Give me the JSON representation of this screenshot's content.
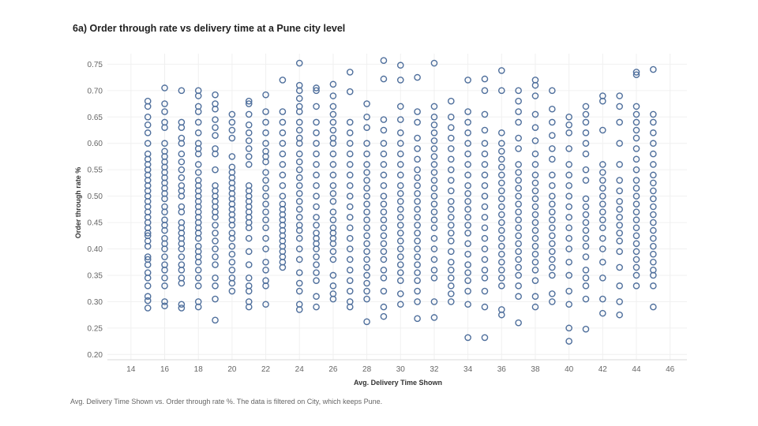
{
  "chart_data": {
    "type": "scatter",
    "title": "6a) Order through rate vs delivery time at a Pune city level",
    "xlabel": "Avg. Delivery Time Shown",
    "ylabel": "Order through rate %",
    "xlim": [
      12.6,
      47
    ],
    "ylim": [
      0.19,
      0.77
    ],
    "x_ticks": [
      14,
      16,
      18,
      20,
      22,
      24,
      26,
      28,
      30,
      32,
      34,
      36,
      38,
      40,
      42,
      44,
      46
    ],
    "y_ticks": [
      0.2,
      0.25,
      0.3,
      0.35,
      0.4,
      0.45,
      0.5,
      0.55,
      0.6,
      0.65,
      0.7,
      0.75
    ],
    "grid": true,
    "marker": "hollow-circle",
    "marker_color": "#4f6f9c",
    "points_by_x": [
      {
        "x": 15,
        "y": [
          0.288,
          0.302,
          0.31,
          0.33,
          0.345,
          0.355,
          0.37,
          0.38,
          0.385,
          0.405,
          0.415,
          0.425,
          0.43,
          0.44,
          0.45,
          0.46,
          0.47,
          0.48,
          0.49,
          0.5,
          0.51,
          0.52,
          0.53,
          0.54,
          0.55,
          0.56,
          0.57,
          0.58,
          0.6,
          0.62,
          0.635,
          0.65,
          0.67,
          0.68
        ]
      },
      {
        "x": 16,
        "y": [
          0.292,
          0.3,
          0.33,
          0.345,
          0.36,
          0.37,
          0.385,
          0.4,
          0.41,
          0.42,
          0.435,
          0.445,
          0.455,
          0.47,
          0.48,
          0.495,
          0.505,
          0.515,
          0.525,
          0.535,
          0.545,
          0.555,
          0.565,
          0.575,
          0.585,
          0.6,
          0.63,
          0.64,
          0.66,
          0.675,
          0.705
        ]
      },
      {
        "x": 17,
        "y": [
          0.288,
          0.295,
          0.335,
          0.345,
          0.36,
          0.37,
          0.385,
          0.4,
          0.41,
          0.42,
          0.43,
          0.44,
          0.45,
          0.47,
          0.48,
          0.5,
          0.51,
          0.52,
          0.535,
          0.55,
          0.565,
          0.58,
          0.6,
          0.61,
          0.63,
          0.64,
          0.7
        ]
      },
      {
        "x": 18,
        "y": [
          0.29,
          0.3,
          0.33,
          0.345,
          0.36,
          0.375,
          0.385,
          0.395,
          0.405,
          0.42,
          0.43,
          0.44,
          0.45,
          0.46,
          0.47,
          0.48,
          0.49,
          0.5,
          0.51,
          0.52,
          0.53,
          0.545,
          0.56,
          0.58,
          0.59,
          0.6,
          0.62,
          0.64,
          0.66,
          0.67,
          0.69,
          0.7
        ]
      },
      {
        "x": 19,
        "y": [
          0.265,
          0.305,
          0.33,
          0.345,
          0.37,
          0.385,
          0.4,
          0.415,
          0.43,
          0.445,
          0.46,
          0.47,
          0.48,
          0.49,
          0.5,
          0.51,
          0.52,
          0.55,
          0.58,
          0.59,
          0.615,
          0.63,
          0.645,
          0.665,
          0.675,
          0.692
        ]
      },
      {
        "x": 20,
        "y": [
          0.32,
          0.335,
          0.345,
          0.36,
          0.375,
          0.39,
          0.405,
          0.42,
          0.43,
          0.445,
          0.455,
          0.465,
          0.475,
          0.485,
          0.495,
          0.505,
          0.515,
          0.525,
          0.535,
          0.545,
          0.555,
          0.575,
          0.61,
          0.625,
          0.64,
          0.655
        ]
      },
      {
        "x": 21,
        "y": [
          0.29,
          0.3,
          0.32,
          0.33,
          0.345,
          0.37,
          0.395,
          0.42,
          0.44,
          0.45,
          0.46,
          0.47,
          0.48,
          0.49,
          0.5,
          0.51,
          0.52,
          0.56,
          0.575,
          0.59,
          0.605,
          0.62,
          0.635,
          0.655,
          0.675,
          0.68
        ]
      },
      {
        "x": 22,
        "y": [
          0.295,
          0.33,
          0.34,
          0.36,
          0.375,
          0.4,
          0.42,
          0.44,
          0.455,
          0.47,
          0.485,
          0.5,
          0.515,
          0.53,
          0.545,
          0.565,
          0.575,
          0.585,
          0.6,
          0.62,
          0.64,
          0.66,
          0.692
        ]
      },
      {
        "x": 23,
        "y": [
          0.365,
          0.375,
          0.385,
          0.395,
          0.405,
          0.415,
          0.425,
          0.435,
          0.445,
          0.455,
          0.465,
          0.475,
          0.485,
          0.5,
          0.52,
          0.54,
          0.56,
          0.58,
          0.6,
          0.62,
          0.64,
          0.66,
          0.72
        ]
      },
      {
        "x": 24,
        "y": [
          0.285,
          0.295,
          0.32,
          0.335,
          0.355,
          0.38,
          0.4,
          0.42,
          0.435,
          0.445,
          0.46,
          0.475,
          0.49,
          0.505,
          0.52,
          0.535,
          0.55,
          0.565,
          0.58,
          0.6,
          0.61,
          0.625,
          0.64,
          0.66,
          0.67,
          0.685,
          0.7,
          0.71,
          0.752
        ]
      },
      {
        "x": 25,
        "y": [
          0.29,
          0.31,
          0.34,
          0.355,
          0.37,
          0.385,
          0.4,
          0.41,
          0.42,
          0.43,
          0.445,
          0.46,
          0.48,
          0.5,
          0.52,
          0.54,
          0.56,
          0.58,
          0.6,
          0.62,
          0.64,
          0.67,
          0.7,
          0.705
        ]
      },
      {
        "x": 26,
        "y": [
          0.305,
          0.315,
          0.33,
          0.35,
          0.38,
          0.395,
          0.41,
          0.42,
          0.43,
          0.44,
          0.455,
          0.47,
          0.49,
          0.505,
          0.52,
          0.54,
          0.56,
          0.58,
          0.6,
          0.61,
          0.625,
          0.64,
          0.655,
          0.67,
          0.69,
          0.712
        ]
      },
      {
        "x": 27,
        "y": [
          0.29,
          0.3,
          0.32,
          0.34,
          0.36,
          0.38,
          0.4,
          0.42,
          0.44,
          0.46,
          0.48,
          0.5,
          0.52,
          0.54,
          0.56,
          0.58,
          0.6,
          0.62,
          0.64,
          0.698,
          0.735
        ]
      },
      {
        "x": 28,
        "y": [
          0.262,
          0.305,
          0.32,
          0.335,
          0.35,
          0.365,
          0.38,
          0.395,
          0.41,
          0.425,
          0.44,
          0.455,
          0.47,
          0.485,
          0.5,
          0.515,
          0.53,
          0.545,
          0.56,
          0.58,
          0.6,
          0.63,
          0.65,
          0.675
        ]
      },
      {
        "x": 29,
        "y": [
          0.272,
          0.29,
          0.32,
          0.345,
          0.36,
          0.38,
          0.395,
          0.41,
          0.425,
          0.44,
          0.455,
          0.47,
          0.485,
          0.5,
          0.52,
          0.54,
          0.56,
          0.58,
          0.6,
          0.625,
          0.645,
          0.722,
          0.757
        ]
      },
      {
        "x": 30,
        "y": [
          0.295,
          0.315,
          0.34,
          0.355,
          0.37,
          0.385,
          0.4,
          0.415,
          0.43,
          0.445,
          0.46,
          0.475,
          0.49,
          0.505,
          0.52,
          0.54,
          0.56,
          0.58,
          0.6,
          0.62,
          0.645,
          0.67,
          0.72,
          0.748
        ]
      },
      {
        "x": 31,
        "y": [
          0.268,
          0.3,
          0.32,
          0.34,
          0.355,
          0.37,
          0.385,
          0.4,
          0.415,
          0.43,
          0.445,
          0.46,
          0.475,
          0.49,
          0.505,
          0.52,
          0.535,
          0.55,
          0.57,
          0.59,
          0.61,
          0.64,
          0.66,
          0.725
        ]
      },
      {
        "x": 32,
        "y": [
          0.27,
          0.3,
          0.345,
          0.36,
          0.38,
          0.4,
          0.42,
          0.44,
          0.455,
          0.47,
          0.485,
          0.5,
          0.515,
          0.53,
          0.545,
          0.56,
          0.575,
          0.59,
          0.605,
          0.62,
          0.635,
          0.65,
          0.67,
          0.752
        ]
      },
      {
        "x": 33,
        "y": [
          0.3,
          0.315,
          0.33,
          0.345,
          0.36,
          0.375,
          0.395,
          0.415,
          0.43,
          0.445,
          0.46,
          0.475,
          0.49,
          0.51,
          0.53,
          0.55,
          0.57,
          0.59,
          0.61,
          0.63,
          0.65,
          0.68
        ]
      },
      {
        "x": 34,
        "y": [
          0.232,
          0.295,
          0.32,
          0.34,
          0.355,
          0.37,
          0.39,
          0.41,
          0.43,
          0.445,
          0.46,
          0.475,
          0.49,
          0.505,
          0.52,
          0.54,
          0.56,
          0.58,
          0.6,
          0.62,
          0.64,
          0.66,
          0.72
        ]
      },
      {
        "x": 35,
        "y": [
          0.232,
          0.29,
          0.32,
          0.345,
          0.36,
          0.38,
          0.4,
          0.42,
          0.44,
          0.46,
          0.48,
          0.5,
          0.52,
          0.54,
          0.56,
          0.58,
          0.6,
          0.625,
          0.655,
          0.7,
          0.722
        ]
      },
      {
        "x": 36,
        "y": [
          0.275,
          0.285,
          0.33,
          0.345,
          0.36,
          0.375,
          0.39,
          0.405,
          0.42,
          0.435,
          0.45,
          0.465,
          0.48,
          0.495,
          0.51,
          0.525,
          0.54,
          0.555,
          0.57,
          0.585,
          0.6,
          0.62,
          0.7,
          0.738
        ]
      },
      {
        "x": 37,
        "y": [
          0.26,
          0.31,
          0.33,
          0.35,
          0.365,
          0.38,
          0.395,
          0.41,
          0.425,
          0.44,
          0.455,
          0.47,
          0.485,
          0.5,
          0.515,
          0.53,
          0.545,
          0.56,
          0.59,
          0.61,
          0.64,
          0.66,
          0.68,
          0.7
        ]
      },
      {
        "x": 38,
        "y": [
          0.29,
          0.31,
          0.34,
          0.36,
          0.375,
          0.39,
          0.405,
          0.42,
          0.435,
          0.45,
          0.465,
          0.48,
          0.495,
          0.51,
          0.525,
          0.54,
          0.56,
          0.58,
          0.605,
          0.63,
          0.655,
          0.69,
          0.71,
          0.72
        ]
      },
      {
        "x": 39,
        "y": [
          0.3,
          0.315,
          0.35,
          0.365,
          0.38,
          0.395,
          0.41,
          0.425,
          0.44,
          0.455,
          0.47,
          0.485,
          0.5,
          0.52,
          0.54,
          0.57,
          0.59,
          0.615,
          0.64,
          0.665,
          0.7
        ]
      },
      {
        "x": 40,
        "y": [
          0.225,
          0.25,
          0.295,
          0.32,
          0.35,
          0.375,
          0.4,
          0.42,
          0.44,
          0.46,
          0.48,
          0.5,
          0.52,
          0.54,
          0.56,
          0.59,
          0.62,
          0.635,
          0.65
        ]
      },
      {
        "x": 41,
        "y": [
          0.248,
          0.305,
          0.33,
          0.345,
          0.36,
          0.385,
          0.405,
          0.42,
          0.435,
          0.45,
          0.465,
          0.48,
          0.495,
          0.53,
          0.55,
          0.58,
          0.6,
          0.62,
          0.64,
          0.655,
          0.67
        ]
      },
      {
        "x": 42,
        "y": [
          0.278,
          0.305,
          0.345,
          0.375,
          0.4,
          0.42,
          0.44,
          0.455,
          0.47,
          0.485,
          0.5,
          0.515,
          0.53,
          0.545,
          0.56,
          0.625,
          0.68,
          0.69
        ]
      },
      {
        "x": 43,
        "y": [
          0.275,
          0.3,
          0.33,
          0.365,
          0.395,
          0.415,
          0.43,
          0.445,
          0.46,
          0.475,
          0.49,
          0.51,
          0.53,
          0.56,
          0.6,
          0.64,
          0.67,
          0.69
        ]
      },
      {
        "x": 44,
        "y": [
          0.33,
          0.35,
          0.365,
          0.38,
          0.395,
          0.41,
          0.425,
          0.44,
          0.455,
          0.47,
          0.485,
          0.5,
          0.515,
          0.53,
          0.55,
          0.57,
          0.59,
          0.61,
          0.625,
          0.64,
          0.655,
          0.67,
          0.73,
          0.735
        ]
      },
      {
        "x": 45,
        "y": [
          0.29,
          0.33,
          0.35,
          0.36,
          0.375,
          0.39,
          0.405,
          0.42,
          0.435,
          0.45,
          0.465,
          0.48,
          0.495,
          0.51,
          0.525,
          0.54,
          0.56,
          0.58,
          0.6,
          0.62,
          0.64,
          0.655,
          0.74
        ]
      }
    ]
  },
  "caption": "Avg. Delivery Time Shown vs. Order through rate %. The data is filtered on City, which keeps Pune."
}
